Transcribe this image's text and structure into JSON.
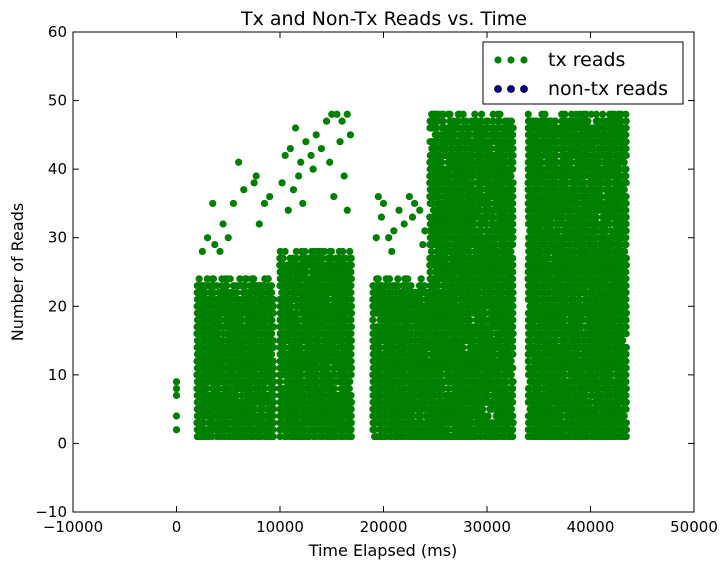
{
  "chart_data": {
    "type": "scatter",
    "title": "Tx and Non-Tx Reads vs. Time",
    "xlabel": "Time Elapsed (ms)",
    "ylabel": "Number of Reads",
    "xlim": [
      -10000,
      50000
    ],
    "ylim": [
      -10,
      60
    ],
    "xticks": [
      -10000,
      0,
      10000,
      20000,
      30000,
      40000,
      50000
    ],
    "xtick_labels": [
      "−10000",
      "0",
      "10000",
      "20000",
      "30000",
      "40000",
      "50000"
    ],
    "yticks": [
      -10,
      0,
      10,
      20,
      30,
      40,
      50,
      60
    ],
    "ytick_labels": [
      "−10",
      "0",
      "10",
      "20",
      "30",
      "40",
      "50",
      "60"
    ],
    "grid": false,
    "legend_position": "top-right",
    "series": [
      {
        "name": "tx reads",
        "color": "#008000",
        "marker": "circle",
        "bands": [
          {
            "x_range": [
              2000,
              9500
            ],
            "y_range": [
              1,
              24
            ]
          },
          {
            "x_range": [
              10000,
              17000
            ],
            "y_range": [
              1,
              28
            ]
          },
          {
            "x_range": [
              19000,
              24500
            ],
            "y_range": [
              1,
              24
            ]
          },
          {
            "x_range": [
              24500,
              32500
            ],
            "y_range": [
              1,
              48
            ]
          },
          {
            "x_range": [
              34000,
              43500
            ],
            "y_range": [
              1,
              48
            ]
          }
        ],
        "points": [
          [
            0,
            2
          ],
          [
            0,
            4
          ],
          [
            0,
            7
          ],
          [
            0,
            8
          ],
          [
            0,
            9
          ],
          [
            6000,
            41
          ],
          [
            3500,
            35
          ],
          [
            4500,
            32
          ],
          [
            3000,
            30
          ],
          [
            5500,
            35
          ],
          [
            6500,
            37
          ],
          [
            7500,
            38
          ],
          [
            7700,
            39
          ],
          [
            8500,
            35
          ],
          [
            9000,
            36
          ],
          [
            2500,
            28
          ],
          [
            3700,
            29
          ],
          [
            5000,
            30
          ],
          [
            8000,
            32
          ],
          [
            4200,
            28
          ],
          [
            11500,
            46
          ],
          [
            12500,
            44
          ],
          [
            13500,
            45
          ],
          [
            14500,
            47
          ],
          [
            15000,
            48
          ],
          [
            15500,
            48
          ],
          [
            16000,
            47
          ],
          [
            16500,
            48
          ],
          [
            10500,
            42
          ],
          [
            11000,
            43
          ],
          [
            12000,
            41
          ],
          [
            13000,
            42
          ],
          [
            14000,
            43
          ],
          [
            16800,
            45
          ],
          [
            15800,
            44
          ],
          [
            10200,
            38
          ],
          [
            11800,
            39
          ],
          [
            13200,
            40
          ],
          [
            14800,
            41
          ],
          [
            16200,
            39
          ],
          [
            12200,
            35
          ],
          [
            10800,
            34
          ],
          [
            15200,
            36
          ],
          [
            16500,
            34
          ],
          [
            11300,
            37
          ],
          [
            19500,
            36
          ],
          [
            20000,
            35
          ],
          [
            19800,
            33
          ],
          [
            21500,
            34
          ],
          [
            22000,
            32
          ],
          [
            22500,
            36
          ],
          [
            23000,
            35
          ],
          [
            23500,
            34
          ],
          [
            20500,
            30
          ],
          [
            21000,
            31
          ],
          [
            22800,
            33
          ],
          [
            24000,
            31
          ],
          [
            19300,
            30
          ],
          [
            20800,
            28
          ],
          [
            23800,
            29
          ],
          [
            35000,
            37
          ],
          [
            35500,
            36
          ],
          [
            36500,
            38
          ],
          [
            35200,
            33
          ],
          [
            36000,
            30
          ]
        ]
      },
      {
        "name": "non-tx reads",
        "color": "#00008B",
        "marker": "circle",
        "points": []
      }
    ]
  }
}
